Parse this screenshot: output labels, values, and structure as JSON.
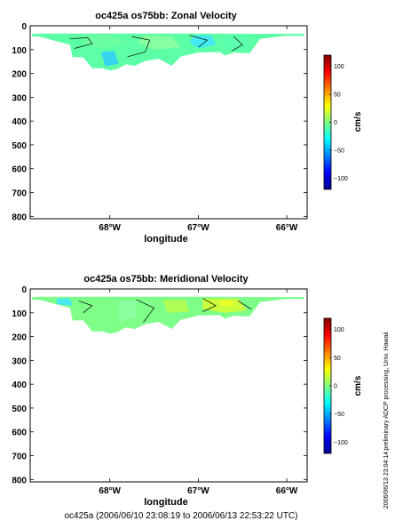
{
  "chart_data": [
    {
      "type": "heatmap",
      "title": "oc425a os75bb: Zonal Velocity",
      "xlabel": "longitude",
      "ylabel": "",
      "xlim": [
        -68.9,
        -65.77
      ],
      "ylim": [
        810,
        0
      ],
      "x_ticks": [
        {
          "value": -68,
          "label": "68°W"
        },
        {
          "value": -67,
          "label": "67°W"
        },
        {
          "value": -66,
          "label": "66°W"
        }
      ],
      "y_ticks": [
        0,
        100,
        200,
        300,
        400,
        500,
        600,
        700,
        800
      ],
      "colorbar": {
        "label": "cm/s",
        "range": [
          -120,
          120
        ],
        "ticks": [
          100,
          50,
          0,
          -50,
          -100
        ]
      },
      "grid": false,
      "section_outline": [
        [
          -68.88,
          35
        ],
        [
          -68.78,
          33
        ],
        [
          -66.9,
          33
        ],
        [
          -65.8,
          34
        ],
        [
          -65.8,
          42
        ],
        [
          -66.02,
          42
        ],
        [
          -66.3,
          55
        ],
        [
          -66.42,
          115
        ],
        [
          -66.5,
          115
        ],
        [
          -66.6,
          112
        ],
        [
          -66.7,
          125
        ],
        [
          -66.75,
          110
        ],
        [
          -67.0,
          112
        ],
        [
          -67.2,
          130
        ],
        [
          -67.3,
          168
        ],
        [
          -67.45,
          138
        ],
        [
          -67.6,
          148
        ],
        [
          -67.72,
          168
        ],
        [
          -67.82,
          162
        ],
        [
          -67.92,
          182
        ],
        [
          -68.0,
          188
        ],
        [
          -68.08,
          178
        ],
        [
          -68.2,
          178
        ],
        [
          -68.3,
          132
        ],
        [
          -68.42,
          132
        ],
        [
          -68.45,
          80
        ],
        [
          -68.8,
          45
        ],
        [
          -68.88,
          45
        ]
      ],
      "field_summary": {
        "dominant_value": 0,
        "typical_range": [
          -10,
          20
        ]
      }
    },
    {
      "type": "heatmap",
      "title": "oc425a os75bb: Meridional Velocity",
      "xlabel": "longitude",
      "ylabel": "",
      "xlim": [
        -68.9,
        -65.77
      ],
      "ylim": [
        810,
        0
      ],
      "x_ticks": [
        {
          "value": -68,
          "label": "68°W"
        },
        {
          "value": -67,
          "label": "67°W"
        },
        {
          "value": -66,
          "label": "66°W"
        }
      ],
      "y_ticks": [
        0,
        100,
        200,
        300,
        400,
        500,
        600,
        700,
        800
      ],
      "colorbar": {
        "label": "cm/s",
        "range": [
          -120,
          120
        ],
        "ticks": [
          100,
          50,
          0,
          -50,
          -100
        ]
      },
      "grid": false,
      "section_outline": [
        [
          -68.88,
          35
        ],
        [
          -68.78,
          33
        ],
        [
          -66.9,
          33
        ],
        [
          -65.8,
          34
        ],
        [
          -65.8,
          42
        ],
        [
          -66.02,
          42
        ],
        [
          -66.3,
          55
        ],
        [
          -66.42,
          115
        ],
        [
          -66.5,
          115
        ],
        [
          -66.6,
          112
        ],
        [
          -66.7,
          125
        ],
        [
          -66.75,
          110
        ],
        [
          -67.0,
          112
        ],
        [
          -67.2,
          130
        ],
        [
          -67.3,
          168
        ],
        [
          -67.45,
          138
        ],
        [
          -67.6,
          148
        ],
        [
          -67.72,
          168
        ],
        [
          -67.82,
          162
        ],
        [
          -67.92,
          182
        ],
        [
          -68.0,
          188
        ],
        [
          -68.08,
          178
        ],
        [
          -68.2,
          178
        ],
        [
          -68.3,
          132
        ],
        [
          -68.42,
          132
        ],
        [
          -68.45,
          80
        ],
        [
          -68.8,
          45
        ],
        [
          -68.88,
          45
        ]
      ],
      "field_summary": {
        "dominant_value": 5,
        "typical_range": [
          -10,
          35
        ]
      }
    }
  ],
  "footer": "oc425a (2006/06/10 23:08:19 to 2006/06/13 22:53:22 UTC)",
  "side_note": "preliminary ADCP processing,   Univ. Hawaii",
  "side_date": "2006/06/13 23:04:14"
}
